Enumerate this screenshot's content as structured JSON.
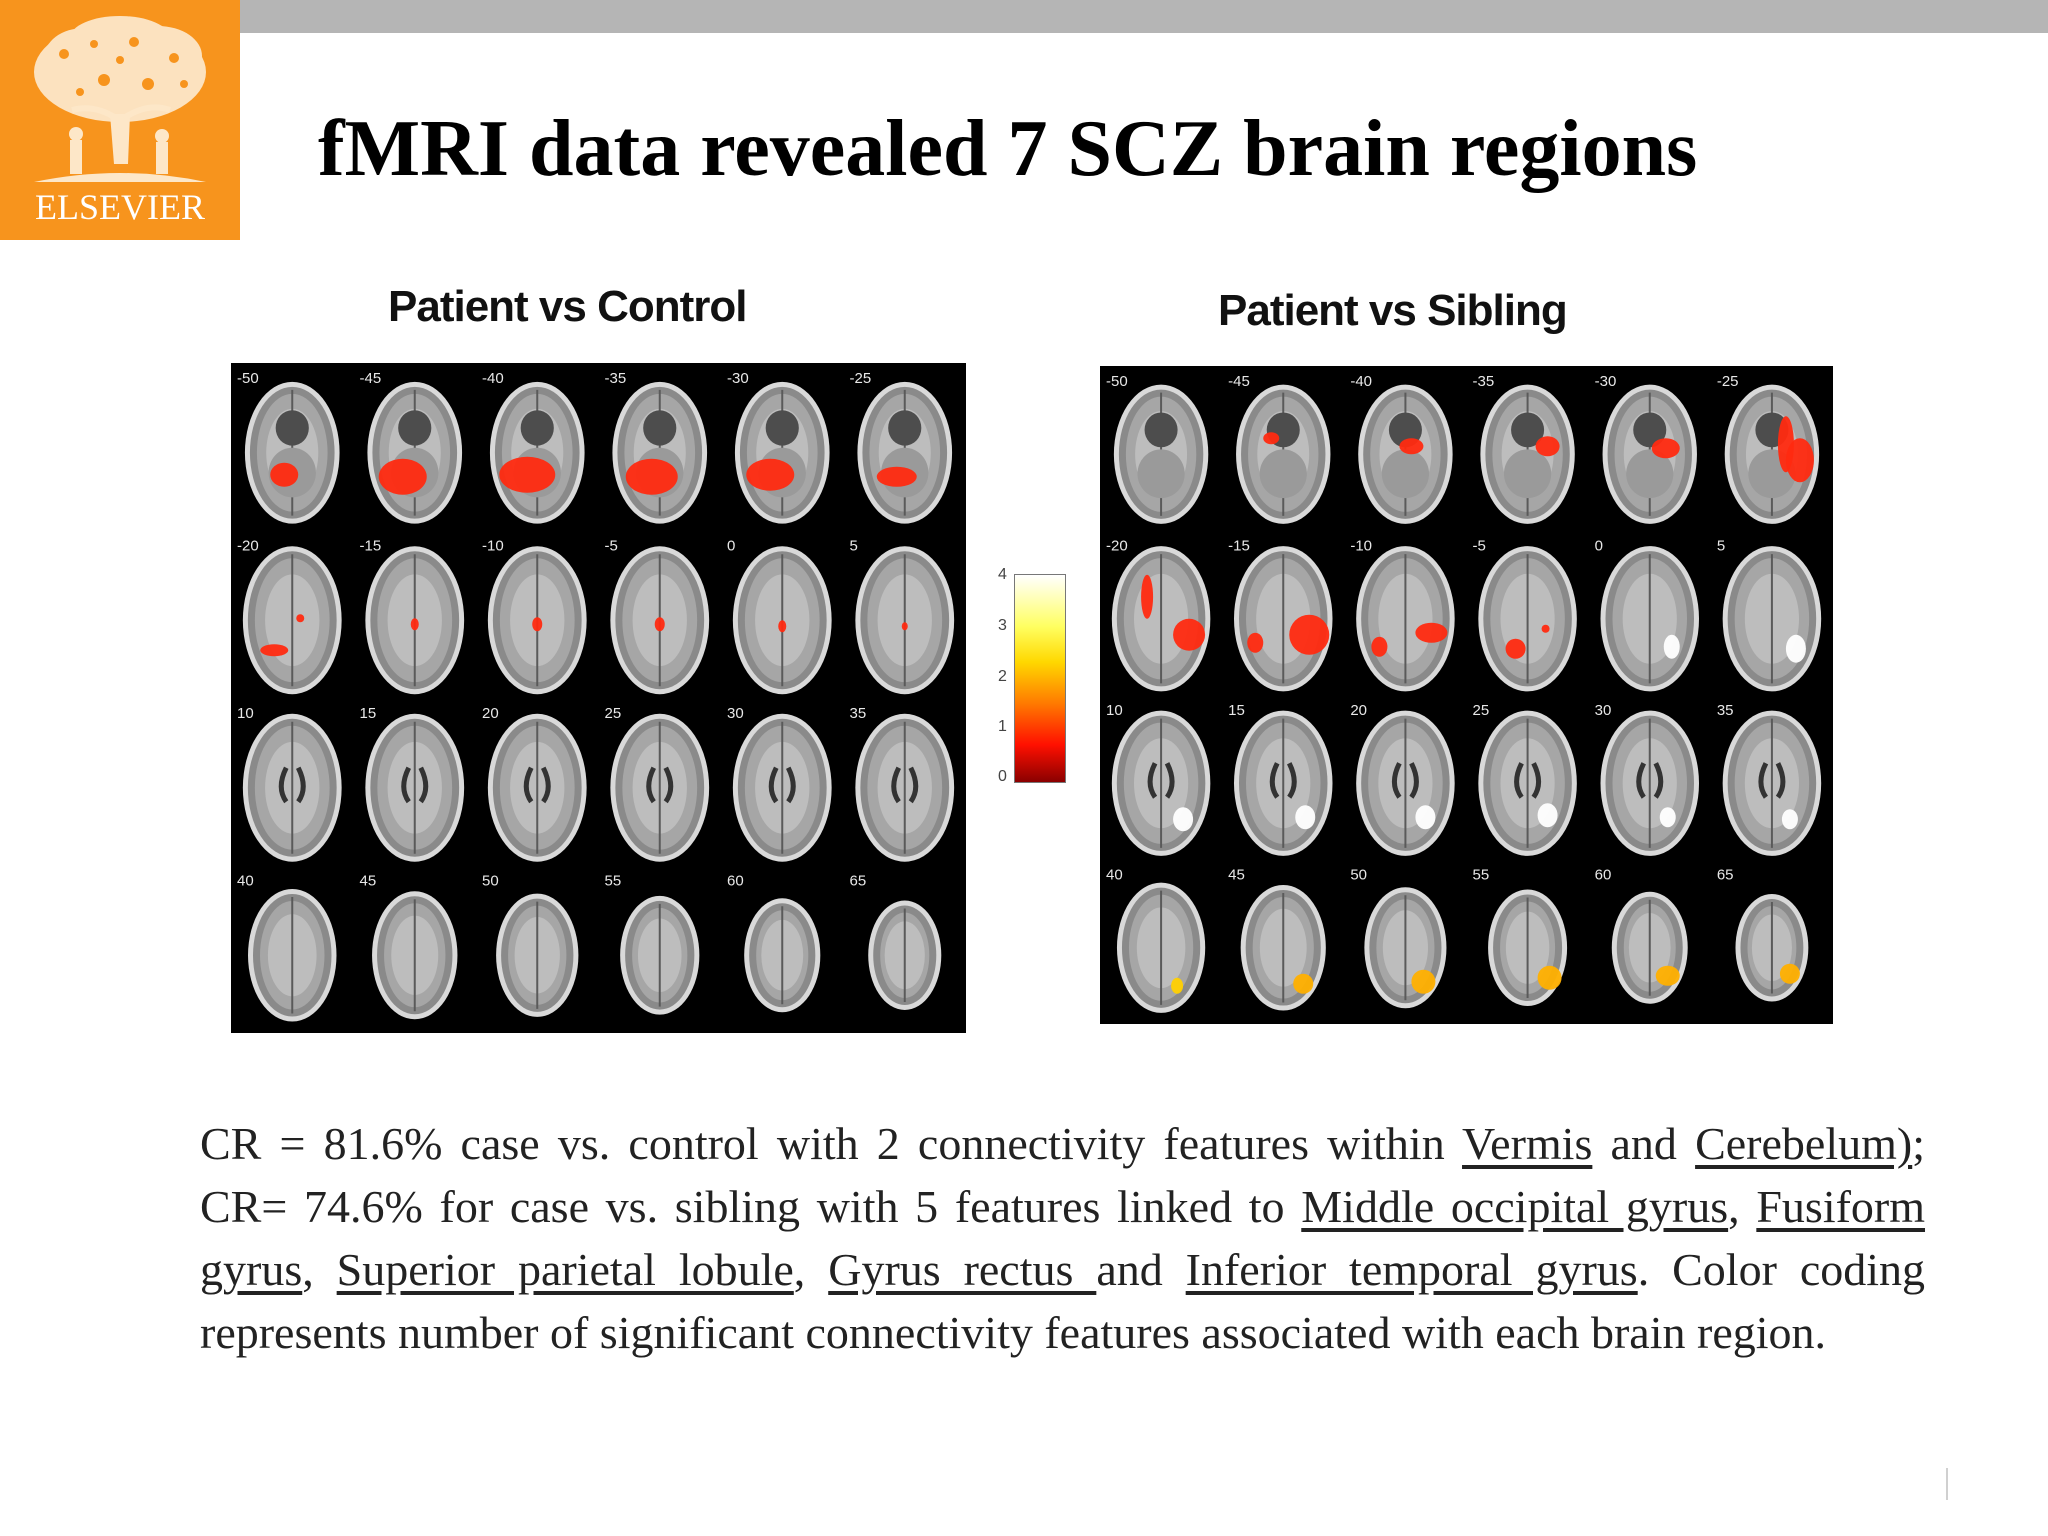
{
  "logo": {
    "text": "ELSEVIER"
  },
  "slide": {
    "title": "fMRI data revealed 7 SCZ brain regions"
  },
  "panels": [
    {
      "title": "Patient vs Control",
      "slice_labels": [
        "-50",
        "-45",
        "-40",
        "-35",
        "-30",
        "-25",
        "-20",
        "-15",
        "-10",
        "-5",
        "0",
        "5",
        "10",
        "15",
        "20",
        "25",
        "30",
        "35",
        "40",
        "45",
        "50",
        "55",
        "60",
        "65"
      ]
    },
    {
      "title": "Patient vs Sibling",
      "slice_labels": [
        "-50",
        "-45",
        "-40",
        "-35",
        "-30",
        "-25",
        "-20",
        "-15",
        "-10",
        "-5",
        "0",
        "5",
        "10",
        "15",
        "20",
        "25",
        "30",
        "35",
        "40",
        "45",
        "50",
        "55",
        "60",
        "65"
      ]
    }
  ],
  "colorbar": {
    "ticks": [
      "4",
      "3",
      "2",
      "1",
      "0"
    ]
  },
  "caption": {
    "p1": "CR = 81.6% case vs. control with 2 connectivity features within ",
    "l1": "Vermis",
    "p2": " and ",
    "l2": "Cerebelum)",
    "p3": "; CR= 74.6% for case vs. sibling with 5 features linked to ",
    "l3": "Middle occipital gyrus",
    "p4": ", ",
    "l4": "Fusiform gyrus",
    "p5": ", ",
    "l5": "Superior parietal lobule",
    "p6": ", ",
    "l6": "Gyrus rectus ",
    "p7": "and ",
    "l7": "Inferior temporal gyrus",
    "p8": ". Color coding represents number of significant connectivity features associated with each brain region."
  }
}
